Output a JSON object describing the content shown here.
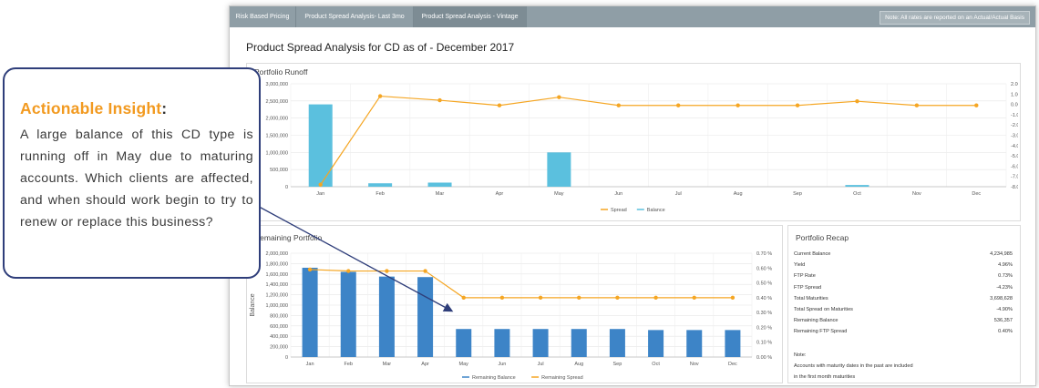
{
  "tabs": [
    "Risk Based Pricing",
    "Product Spread Analysis- Last 3mo",
    "Product Spread Analysis - Vintage"
  ],
  "note": "Note: All rates are reported on an Actual/Actual Basis",
  "page_title": "Product Spread Analysis for CD as of - December 2017",
  "callout": {
    "heading": "Actionable Insight",
    "heading_suffix": ":",
    "body": "A large balance of this CD type is running off in May due to maturing accounts. Which clients are affected, and when should work begin  to try to renew or replace this business?"
  },
  "colors": {
    "spread": "#f5a623",
    "balance_light": "#5bc0de",
    "balance_dark": "#3d84c7",
    "callout_border": "#2f3e7a",
    "callout_heading": "#f29a20"
  },
  "recap": {
    "title": "Portfolio Recap",
    "rows": [
      {
        "label": "Current Balance",
        "value": "4,234,985"
      },
      {
        "label": "Yield",
        "value": "4.96%"
      },
      {
        "label": "FTP Rate",
        "value": "0.73%"
      },
      {
        "label": "FTP Spread",
        "value": "-4.23%"
      },
      {
        "label": "Total Maturities",
        "value": "3,698,628"
      },
      {
        "label": "Total Spread on Maturities",
        "value": "-4.90%"
      },
      {
        "label": "Remaining Balance",
        "value": "536,357"
      },
      {
        "label": "Remaining FTP Spread",
        "value": "0.40%"
      }
    ],
    "note_label": "Note:",
    "note_lines": [
      "Accounts with maturity dates in the past are included",
      "in the first month maturities"
    ]
  },
  "chart_data": [
    {
      "type": "bar",
      "title": "Portfolio Runoff",
      "categories": [
        "Jan",
        "Feb",
        "Mar",
        "Apr",
        "May",
        "Jun",
        "Jul",
        "Aug",
        "Sep",
        "Oct",
        "Nov",
        "Dec"
      ],
      "series": [
        {
          "name": "Balance",
          "type": "bar",
          "axis": "left",
          "values": [
            2400000,
            100000,
            120000,
            0,
            1000000,
            0,
            0,
            0,
            0,
            50000,
            0,
            0
          ]
        },
        {
          "name": "Spread",
          "type": "line",
          "axis": "right",
          "values": [
            -7.8,
            0.8,
            0.4,
            -0.1,
            0.7,
            -0.1,
            -0.1,
            -0.1,
            -0.1,
            0.3,
            -0.1,
            -0.1
          ]
        }
      ],
      "left_ticks": [
        "3,000,000",
        "2,500,000",
        "2,000,000",
        "1,500,000",
        "1,000,000",
        "500,000",
        "0"
      ],
      "left_tick_values": [
        3000000,
        2500000,
        2000000,
        1500000,
        1000000,
        500000,
        0
      ],
      "ylim_left": [
        0,
        3000000
      ],
      "right_ticks": [
        "2.00 %",
        "1.00 %",
        "0.00 %",
        "-1.00 %",
        "-2.00 %",
        "-3.00 %",
        "-4.00 %",
        "-5.00 %",
        "-6.00 %",
        "-7.00 %",
        "-8.00 %"
      ],
      "right_tick_values": [
        2,
        1,
        0,
        -1,
        -2,
        -3,
        -4,
        -5,
        -6,
        -7,
        -8
      ],
      "ylim_right": [
        -8,
        2
      ],
      "ylabel_right": "FTRP Spread",
      "legend": [
        "Spread",
        "Balance"
      ]
    },
    {
      "type": "bar",
      "title": "Remaining Portfolio",
      "categories": [
        "Jan",
        "Feb",
        "Mar",
        "Apr",
        "May",
        "Jun",
        "Jul",
        "Aug",
        "Sep",
        "Oct",
        "Nov",
        "Dec"
      ],
      "series": [
        {
          "name": "Remaining Balance",
          "type": "bar",
          "axis": "left",
          "values": [
            1720000,
            1640000,
            1550000,
            1540000,
            540000,
            540000,
            540000,
            540000,
            540000,
            520000,
            520000,
            520000
          ]
        },
        {
          "name": "Remaining Spread",
          "type": "line",
          "axis": "right",
          "values": [
            0.59,
            0.58,
            0.58,
            0.58,
            0.4,
            0.4,
            0.4,
            0.4,
            0.4,
            0.4,
            0.4,
            0.4
          ]
        }
      ],
      "left_ticks": [
        "2,000,000",
        "1,800,000",
        "1,600,000",
        "1,400,000",
        "1,200,000",
        "1,000,000",
        "800,000",
        "600,000",
        "400,000",
        "200,000",
        "0"
      ],
      "left_tick_values": [
        2000000,
        1800000,
        1600000,
        1400000,
        1200000,
        1000000,
        800000,
        600000,
        400000,
        200000,
        0
      ],
      "ylim_left": [
        0,
        2000000
      ],
      "right_ticks": [
        "0.70 %",
        "0.60 %",
        "0.50 %",
        "0.40 %",
        "0.30 %",
        "0.20 %",
        "0.10 %",
        "0.00 %"
      ],
      "right_tick_values": [
        0.7,
        0.6,
        0.5,
        0.4,
        0.3,
        0.2,
        0.1,
        0
      ],
      "ylim_right": [
        0,
        0.7
      ],
      "ylabel_left": "Balance",
      "ylabel_right": "FTP Spread",
      "legend": [
        "Remaining Balance",
        "Remaining Spread"
      ]
    }
  ]
}
